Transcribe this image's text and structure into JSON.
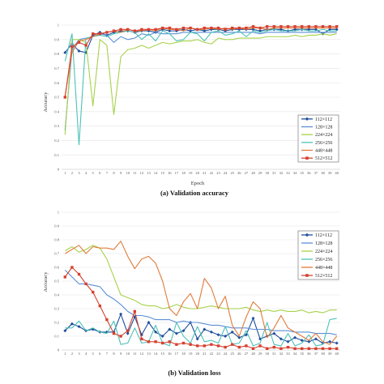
{
  "chart_data": [
    {
      "type": "line",
      "caption": "(a) Validation accuracy",
      "xlabel": "Epoch",
      "ylabel": "Accuracy",
      "ylim": [
        0,
        1
      ],
      "yticks": [
        "0",
        "0.1",
        "0.2",
        "0.3",
        "0.4",
        "0.5",
        "0.6",
        "0.7",
        "0.8",
        "0.9",
        "1"
      ],
      "x": [
        1,
        2,
        3,
        4,
        5,
        6,
        7,
        8,
        9,
        10,
        11,
        12,
        13,
        14,
        15,
        16,
        17,
        18,
        19,
        20,
        21,
        22,
        23,
        24,
        25,
        26,
        27,
        28,
        29,
        30,
        31,
        32,
        33,
        34,
        35,
        36,
        37,
        38,
        39,
        40
      ],
      "grid": "horizontal",
      "legend_position": "bottom-right",
      "series": [
        {
          "name": "112×112",
          "color": "#1f4e9c",
          "marker": "diamond",
          "values": [
            0.81,
            0.87,
            0.82,
            0.81,
            0.93,
            0.95,
            0.93,
            0.95,
            0.96,
            0.96,
            0.95,
            0.96,
            0.96,
            0.95,
            0.97,
            0.96,
            0.96,
            0.97,
            0.96,
            0.97,
            0.96,
            0.97,
            0.97,
            0.96,
            0.97,
            0.97,
            0.97,
            0.97,
            0.96,
            0.97,
            0.97,
            0.97,
            0.96,
            0.97,
            0.97,
            0.97,
            0.97,
            0.94,
            0.97,
            0.97
          ]
        },
        {
          "name": "128×128",
          "color": "#5b8fd6",
          "marker": "none",
          "values": [
            0.27,
            0.83,
            0.9,
            0.91,
            0.92,
            0.94,
            0.93,
            0.88,
            0.92,
            0.9,
            0.91,
            0.94,
            0.93,
            0.95,
            0.94,
            0.94,
            0.94,
            0.95,
            0.95,
            0.95,
            0.95,
            0.95,
            0.95,
            0.95,
            0.95,
            0.95,
            0.95,
            0.95,
            0.94,
            0.95,
            0.95,
            0.95,
            0.95,
            0.95,
            0.95,
            0.95,
            0.95,
            0.95,
            0.95,
            0.95
          ]
        },
        {
          "name": "224×224",
          "color": "#a6d24a",
          "marker": "none",
          "values": [
            0.24,
            0.9,
            0.9,
            0.88,
            0.44,
            0.9,
            0.86,
            0.38,
            0.78,
            0.83,
            0.84,
            0.86,
            0.84,
            0.86,
            0.88,
            0.87,
            0.88,
            0.89,
            0.89,
            0.9,
            0.88,
            0.87,
            0.91,
            0.9,
            0.9,
            0.91,
            0.91,
            0.91,
            0.91,
            0.92,
            0.92,
            0.92,
            0.92,
            0.93,
            0.92,
            0.93,
            0.93,
            0.94,
            0.93,
            0.94
          ]
        },
        {
          "name": "256×256",
          "color": "#4cc2b8",
          "marker": "none",
          "values": [
            0.75,
            0.94,
            0.17,
            0.91,
            0.92,
            0.93,
            0.92,
            0.94,
            0.95,
            0.96,
            0.95,
            0.9,
            0.94,
            0.89,
            0.96,
            0.94,
            0.89,
            0.9,
            0.95,
            0.94,
            0.89,
            0.95,
            0.96,
            0.93,
            0.94,
            0.96,
            0.92,
            0.96,
            0.95,
            0.96,
            0.97,
            0.96,
            0.96,
            0.96,
            0.97,
            0.96,
            0.96,
            0.97,
            0.96,
            0.96
          ]
        },
        {
          "name": "448×448",
          "color": "#e07b39",
          "marker": "none",
          "values": [
            0.51,
            0.81,
            0.89,
            0.9,
            0.92,
            0.94,
            0.95,
            0.96,
            0.95,
            0.97,
            0.96,
            0.96,
            0.97,
            0.96,
            0.98,
            0.97,
            0.97,
            0.96,
            0.98,
            0.97,
            0.97,
            0.98,
            0.97,
            0.98,
            0.97,
            0.98,
            0.97,
            0.98,
            0.98,
            0.97,
            0.98,
            0.98,
            0.98,
            0.98,
            0.98,
            0.98,
            0.98,
            0.98,
            0.98,
            0.98
          ]
        },
        {
          "name": "512×512",
          "color": "#d6412f",
          "marker": "square",
          "values": [
            0.5,
            0.85,
            0.88,
            0.86,
            0.94,
            0.94,
            0.95,
            0.96,
            0.97,
            0.97,
            0.96,
            0.97,
            0.97,
            0.97,
            0.98,
            0.98,
            0.97,
            0.98,
            0.98,
            0.97,
            0.98,
            0.98,
            0.98,
            0.97,
            0.98,
            0.98,
            0.98,
            0.99,
            0.98,
            0.99,
            0.99,
            0.99,
            0.99,
            0.99,
            0.99,
            0.99,
            0.99,
            0.99,
            0.99,
            0.99
          ]
        }
      ]
    },
    {
      "type": "line",
      "caption": "(b) Validation loss",
      "xlabel": "",
      "ylabel": "Accuracy",
      "ylim": [
        0,
        1
      ],
      "yticks": [
        "0",
        "0.1",
        "0.2",
        "0.3",
        "0.4",
        "0.5",
        "0.6",
        "0.7",
        "0.8",
        "0.9",
        "1"
      ],
      "x": [
        1,
        2,
        3,
        4,
        5,
        6,
        7,
        8,
        9,
        10,
        11,
        12,
        13,
        14,
        15,
        16,
        17,
        18,
        19,
        20,
        21,
        22,
        23,
        24,
        25,
        26,
        27,
        28,
        29,
        30,
        31,
        32,
        33,
        34,
        35,
        36,
        37,
        38,
        39,
        40
      ],
      "grid": "horizontal",
      "legend_position": "top-right",
      "series": [
        {
          "name": "112×112",
          "color": "#1f4e9c",
          "marker": "diamond",
          "values": [
            0.14,
            0.19,
            0.17,
            0.14,
            0.15,
            0.13,
            0.13,
            0.13,
            0.26,
            0.12,
            0.24,
            0.11,
            0.2,
            0.13,
            0.1,
            0.15,
            0.12,
            0.14,
            0.2,
            0.08,
            0.15,
            0.13,
            0.11,
            0.1,
            0.13,
            0.09,
            0.11,
            0.23,
            0.08,
            0.1,
            0.12,
            0.08,
            0.06,
            0.09,
            0.07,
            0.06,
            0.08,
            0.05,
            0.06,
            0.05
          ]
        },
        {
          "name": "128×128",
          "color": "#5b8fd6",
          "marker": "none",
          "values": [
            0.58,
            0.53,
            0.48,
            0.48,
            0.47,
            0.46,
            0.4,
            0.37,
            0.33,
            0.28,
            0.25,
            0.25,
            0.24,
            0.22,
            0.22,
            0.22,
            0.2,
            0.21,
            0.2,
            0.2,
            0.19,
            0.18,
            0.18,
            0.17,
            0.16,
            0.16,
            0.16,
            0.15,
            0.15,
            0.15,
            0.14,
            0.14,
            0.14,
            0.13,
            0.13,
            0.13,
            0.12,
            0.12,
            0.12,
            0.11
          ]
        },
        {
          "name": "224×224",
          "color": "#a6d24a",
          "marker": "none",
          "values": [
            0.72,
            0.75,
            0.71,
            0.73,
            0.76,
            0.74,
            0.66,
            0.53,
            0.4,
            0.38,
            0.36,
            0.33,
            0.32,
            0.32,
            0.3,
            0.31,
            0.33,
            0.31,
            0.3,
            0.3,
            0.31,
            0.32,
            0.31,
            0.3,
            0.3,
            0.3,
            0.31,
            0.29,
            0.28,
            0.29,
            0.28,
            0.29,
            0.28,
            0.28,
            0.29,
            0.27,
            0.28,
            0.27,
            0.29,
            0.29
          ]
        },
        {
          "name": "256×256",
          "color": "#4cc2b8",
          "marker": "none",
          "values": [
            0.16,
            0.16,
            0.21,
            0.14,
            0.16,
            0.13,
            0.12,
            0.21,
            0.04,
            0.05,
            0.16,
            0.05,
            0.06,
            0.18,
            0.05,
            0.03,
            0.2,
            0.1,
            0.05,
            0.17,
            0.06,
            0.07,
            0.05,
            0.17,
            0.04,
            0.05,
            0.14,
            0.03,
            0.05,
            0.2,
            0.04,
            0.03,
            0.12,
            0.03,
            0.05,
            0.11,
            0.03,
            0.04,
            0.22,
            0.23
          ]
        },
        {
          "name": "448×448",
          "color": "#e07b39",
          "marker": "none",
          "values": [
            0.7,
            0.73,
            0.76,
            0.7,
            0.75,
            0.74,
            0.74,
            0.73,
            0.79,
            0.68,
            0.59,
            0.66,
            0.68,
            0.63,
            0.5,
            0.3,
            0.25,
            0.35,
            0.41,
            0.3,
            0.52,
            0.45,
            0.3,
            0.39,
            0.18,
            0.1,
            0.24,
            0.35,
            0.3,
            0.09,
            0.16,
            0.25,
            0.16,
            0.13,
            0.1,
            0.07,
            0.12,
            0.06,
            0.04,
            0.1
          ]
        },
        {
          "name": "512×512",
          "color": "#d6412f",
          "marker": "square",
          "values": [
            0.53,
            0.6,
            0.55,
            0.48,
            0.42,
            0.32,
            0.22,
            0.12,
            0.1,
            0.14,
            0.28,
            0.08,
            0.06,
            0.06,
            0.05,
            0.06,
            0.04,
            0.05,
            0.04,
            0.03,
            0.03,
            0.04,
            0.03,
            0.02,
            0.04,
            0.02,
            0.03,
            0.01,
            0.03,
            0.01,
            0.02,
            0.01,
            0.02,
            0.01,
            0.01,
            0.01,
            0.01,
            0.01,
            0.01,
            0.01
          ]
        }
      ]
    }
  ]
}
